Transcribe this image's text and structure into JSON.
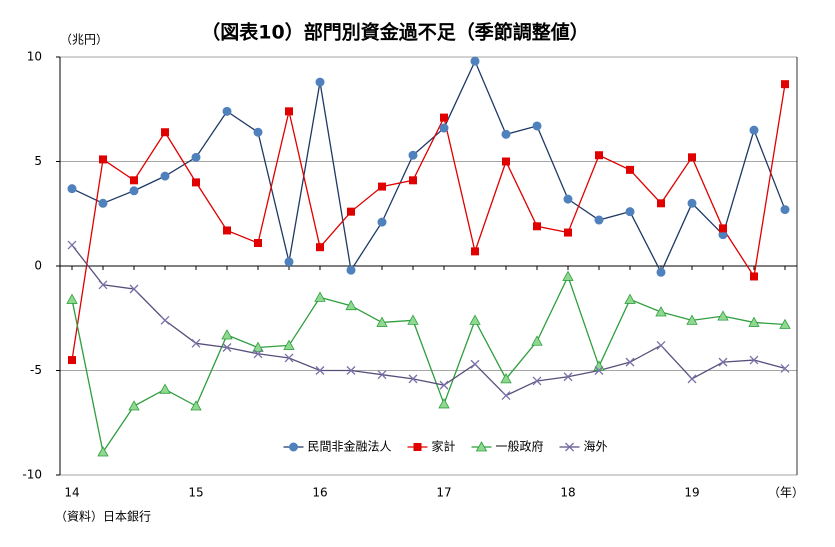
{
  "chart_data": {
    "type": "line",
    "title": "（図表10）部門別資金過不足（季節調整値）",
    "y_unit": "（兆円）",
    "x_unit": "（年）",
    "source": "（資料）日本銀行",
    "categories": [
      "14",
      null,
      null,
      null,
      "15",
      null,
      null,
      null,
      "16",
      null,
      null,
      null,
      "17",
      null,
      null,
      null,
      "18",
      null,
      null,
      null,
      "19",
      null,
      null,
      null
    ],
    "ylim": [
      -10,
      10
    ],
    "yticks": [
      -10,
      -5,
      0,
      5,
      10
    ],
    "grid": true,
    "legend": "bottom",
    "series": [
      {
        "name": "民間非金融法人",
        "color": "#1f3864",
        "marker": "circle",
        "marker_color": "#4f81bd",
        "values": [
          3.7,
          3.0,
          3.6,
          4.3,
          5.2,
          7.4,
          6.4,
          0.2,
          8.8,
          -0.2,
          2.1,
          5.3,
          6.6,
          9.8,
          6.3,
          6.7,
          3.2,
          2.2,
          2.6,
          -0.3,
          3.0,
          1.5,
          6.5,
          2.7
        ]
      },
      {
        "name": "家計",
        "color": "#e00000",
        "marker": "square",
        "marker_color": "#e00000",
        "values": [
          -4.5,
          5.1,
          4.1,
          6.4,
          4.0,
          1.7,
          1.1,
          7.4,
          0.9,
          2.6,
          3.8,
          4.1,
          7.1,
          0.7,
          5.0,
          1.9,
          1.6,
          5.3,
          4.6,
          3.0,
          5.2,
          1.8,
          -0.5,
          8.7
        ]
      },
      {
        "name": "一般政府",
        "color": "#2e9e3e",
        "marker": "triangle",
        "marker_color": "#8fd88f",
        "values": [
          -1.6,
          -8.9,
          -6.7,
          -5.9,
          -6.7,
          -3.3,
          -3.9,
          -3.8,
          -1.5,
          -1.9,
          -2.7,
          -2.6,
          -6.6,
          -2.6,
          -5.4,
          -3.6,
          -0.5,
          -4.8,
          -1.6,
          -2.2,
          -2.6,
          -2.4,
          -2.7,
          -2.8
        ]
      },
      {
        "name": "海外",
        "color": "#5a4f7c",
        "marker": "x",
        "marker_color": "#7a70a8",
        "values": [
          1.0,
          -0.9,
          -1.1,
          -2.6,
          -3.7,
          -3.9,
          -4.2,
          -4.4,
          -5.0,
          -5.0,
          -5.2,
          -5.4,
          -5.7,
          -4.7,
          -6.2,
          -5.5,
          -5.3,
          -5.0,
          -4.6,
          -3.8,
          -5.4,
          -4.6,
          -4.5,
          -4.9
        ]
      }
    ]
  }
}
